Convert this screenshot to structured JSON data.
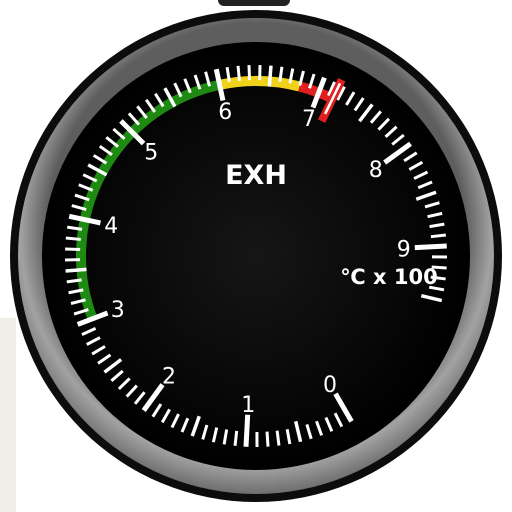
{
  "gauge": {
    "title": "EXH",
    "unit": "℃ x 100",
    "scale_labels": [
      "0",
      "1",
      "2",
      "3",
      "4",
      "5",
      "6",
      "7",
      "8",
      "9"
    ],
    "arc_start_deg": 60,
    "degrees_per_unit": 33,
    "bands": [
      {
        "name": "green",
        "from": 3,
        "to": 6,
        "color": "#1f8a12"
      },
      {
        "name": "yellow",
        "from": 6,
        "to": 6.8,
        "color": "#f0d21a"
      },
      {
        "name": "red",
        "from": 6.8,
        "to": 7.15,
        "color": "#e02020"
      }
    ],
    "redline_value": 7.15,
    "colors": {
      "face": "#050505",
      "bezel": "#8c8c8c",
      "text": "#ffffff",
      "redline": "#e02020"
    }
  }
}
